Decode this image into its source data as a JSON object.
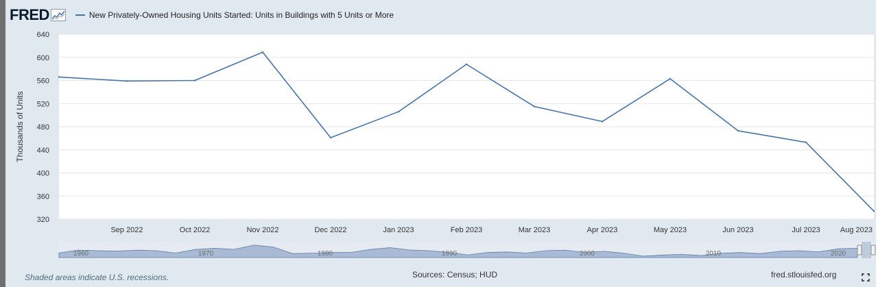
{
  "header": {
    "logo_text": "FRED",
    "series_label": "New Privately-Owned Housing Units Started: Units in Buildings with 5 Units or More"
  },
  "colors": {
    "series": "#4572a7",
    "navigator_fill": "#a9bbd4",
    "background": "#e1e9f0",
    "plot_background": "#ffffff"
  },
  "chart_data": {
    "type": "line",
    "ylabel": "Thousands of Units",
    "xlabel": "",
    "ylim": [
      320,
      640
    ],
    "yticks": [
      320,
      360,
      400,
      440,
      480,
      520,
      560,
      600,
      640
    ],
    "grid": true,
    "legend_placement": "top-left",
    "x_ticks": [
      "Sep 2022",
      "Oct 2022",
      "Nov 2022",
      "Dec 2022",
      "Jan 2023",
      "Feb 2023",
      "Mar 2023",
      "Apr 2023",
      "May 2023",
      "Jun 2023",
      "Jul 2023",
      "Aug 2023"
    ],
    "x": [
      "2022-08-01",
      "2022-09-01",
      "2022-10-01",
      "2022-11-01",
      "2022-12-01",
      "2023-01-01",
      "2023-02-01",
      "2023-03-01",
      "2023-04-01",
      "2023-05-01",
      "2023-06-01",
      "2023-07-01",
      "2023-08-01"
    ],
    "series": [
      {
        "values": [
          566,
          559,
          560,
          609,
          461,
          506,
          588,
          515,
          489,
          563,
          473,
          453,
          334
        ]
      }
    ]
  },
  "navigator": {
    "labels": [
      "1960",
      "1970",
      "1980",
      "1990",
      "2000",
      "2010",
      "2020"
    ]
  },
  "footer": {
    "recession_note": "Shaded areas indicate U.S. recessions.",
    "sources": "Sources: Census; HUD",
    "url": "fred.stlouisfed.org"
  },
  "icons": {
    "fullscreen": "fullscreen-icon",
    "logo_graph": "fred-graph-icon"
  }
}
